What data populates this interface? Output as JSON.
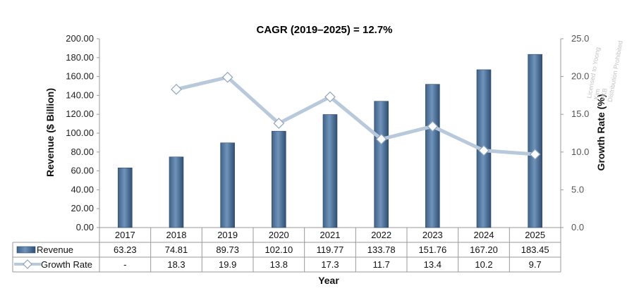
{
  "chart_data": {
    "type": "bar",
    "title": "CAGR (2019–2025) = 12.7%",
    "xlabel": "Year",
    "ylabel": "Revenue ($ Billion)",
    "y2label": "Growth Rate (%)",
    "ylim": [
      0,
      200
    ],
    "y2lim": [
      0,
      25
    ],
    "grid": false,
    "legend": "table-below",
    "categories": [
      "2017",
      "2018",
      "2019",
      "2020",
      "2021",
      "2022",
      "2023",
      "2024",
      "2025"
    ],
    "y_ticks": [
      "0.00",
      "20.00",
      "40.00",
      "60.00",
      "80.00",
      "100.00",
      "120.00",
      "140.00",
      "160.00",
      "180.00",
      "200.00"
    ],
    "y2_ticks": [
      "0.0",
      "5.0",
      "10.0",
      "15.0",
      "20.0",
      "25.0"
    ],
    "series": [
      {
        "name": "Revenue",
        "type": "bar",
        "axis": "left",
        "values": [
          63.23,
          74.81,
          89.73,
          102.1,
          119.77,
          133.78,
          151.76,
          167.2,
          183.45
        ],
        "labels": [
          "63.23",
          "74.81",
          "89.73",
          "102.10",
          "119.77",
          "133.78",
          "151.76",
          "167.20",
          "183.45"
        ],
        "color": "#5b7fa6"
      },
      {
        "name": "Growth Rate",
        "type": "line",
        "axis": "right",
        "values": [
          null,
          18.3,
          19.9,
          13.8,
          17.3,
          11.7,
          13.4,
          10.2,
          9.7
        ],
        "labels": [
          "-",
          "18.3",
          "19.9",
          "13.8",
          "17.3",
          "11.7",
          "13.4",
          "10.2",
          "9.7"
        ],
        "color": "#b9c9dc"
      }
    ]
  },
  "watermark": [
    "Licensed to Yoong",
    "Kim",
    "YKB",
    "Distribution Prohibited"
  ]
}
